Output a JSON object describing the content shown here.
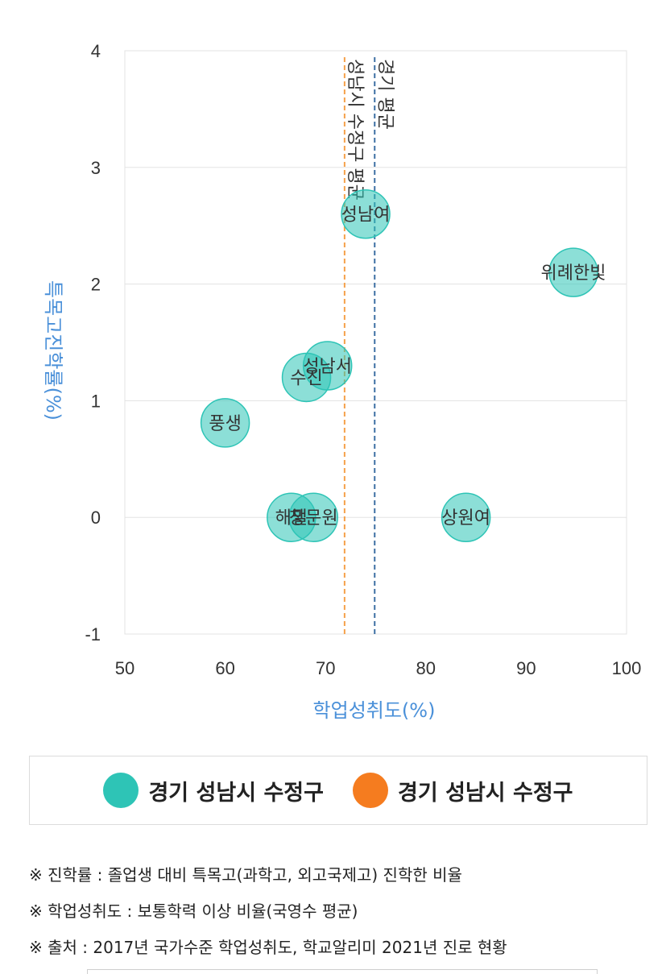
{
  "chart_data": {
    "type": "scatter",
    "xlabel": "학업성취도(%)",
    "ylabel": "특목고진학률(%)",
    "xlim": [
      50,
      100
    ],
    "ylim": [
      -1,
      4
    ],
    "xticks": [
      "50",
      "60",
      "70",
      "80",
      "90",
      "100"
    ],
    "yticks": [
      "-1",
      "0",
      "1",
      "2",
      "3",
      "4"
    ],
    "grid": true,
    "point_color": "#2ec4b6",
    "points": [
      {
        "label": "성남여",
        "x": 74.0,
        "y": 2.6
      },
      {
        "label": "위례한빛",
        "x": 94.7,
        "y": 2.1
      },
      {
        "label": "성남서",
        "x": 70.2,
        "y": 1.3
      },
      {
        "label": "수진",
        "x": 68.1,
        "y": 1.2
      },
      {
        "label": "풍생",
        "x": 60.0,
        "y": 0.81
      },
      {
        "label": "해밀",
        "x": 66.6,
        "y": 0.0
      },
      {
        "label": "창문원",
        "x": 68.8,
        "y": 0.0
      },
      {
        "label": "상원여",
        "x": 84.0,
        "y": 0.0
      }
    ],
    "reference_lines": [
      {
        "label": "성남시 수정구 평균",
        "x": 71.9,
        "color": "#f5a14a"
      },
      {
        "label": "경기 평균",
        "x": 74.9,
        "color": "#3d6fa3"
      }
    ]
  },
  "legend": {
    "items": [
      {
        "label": "경기 성남시 수정구",
        "color": "#2ec4b6"
      },
      {
        "label": "경기 성남시 수정구",
        "color": "#f57c1f"
      }
    ]
  },
  "notes": [
    "※ 진학률 : 졸업생 대비 특목고(과학고, 외고국제고) 진학한 비율",
    "※ 학업성취도 : 보통학력 이상 비율(국영수 평균)",
    "※ 출처 : 2017년 국가수준 학업성취도, 학교알리미 2021년 진로 현황"
  ]
}
